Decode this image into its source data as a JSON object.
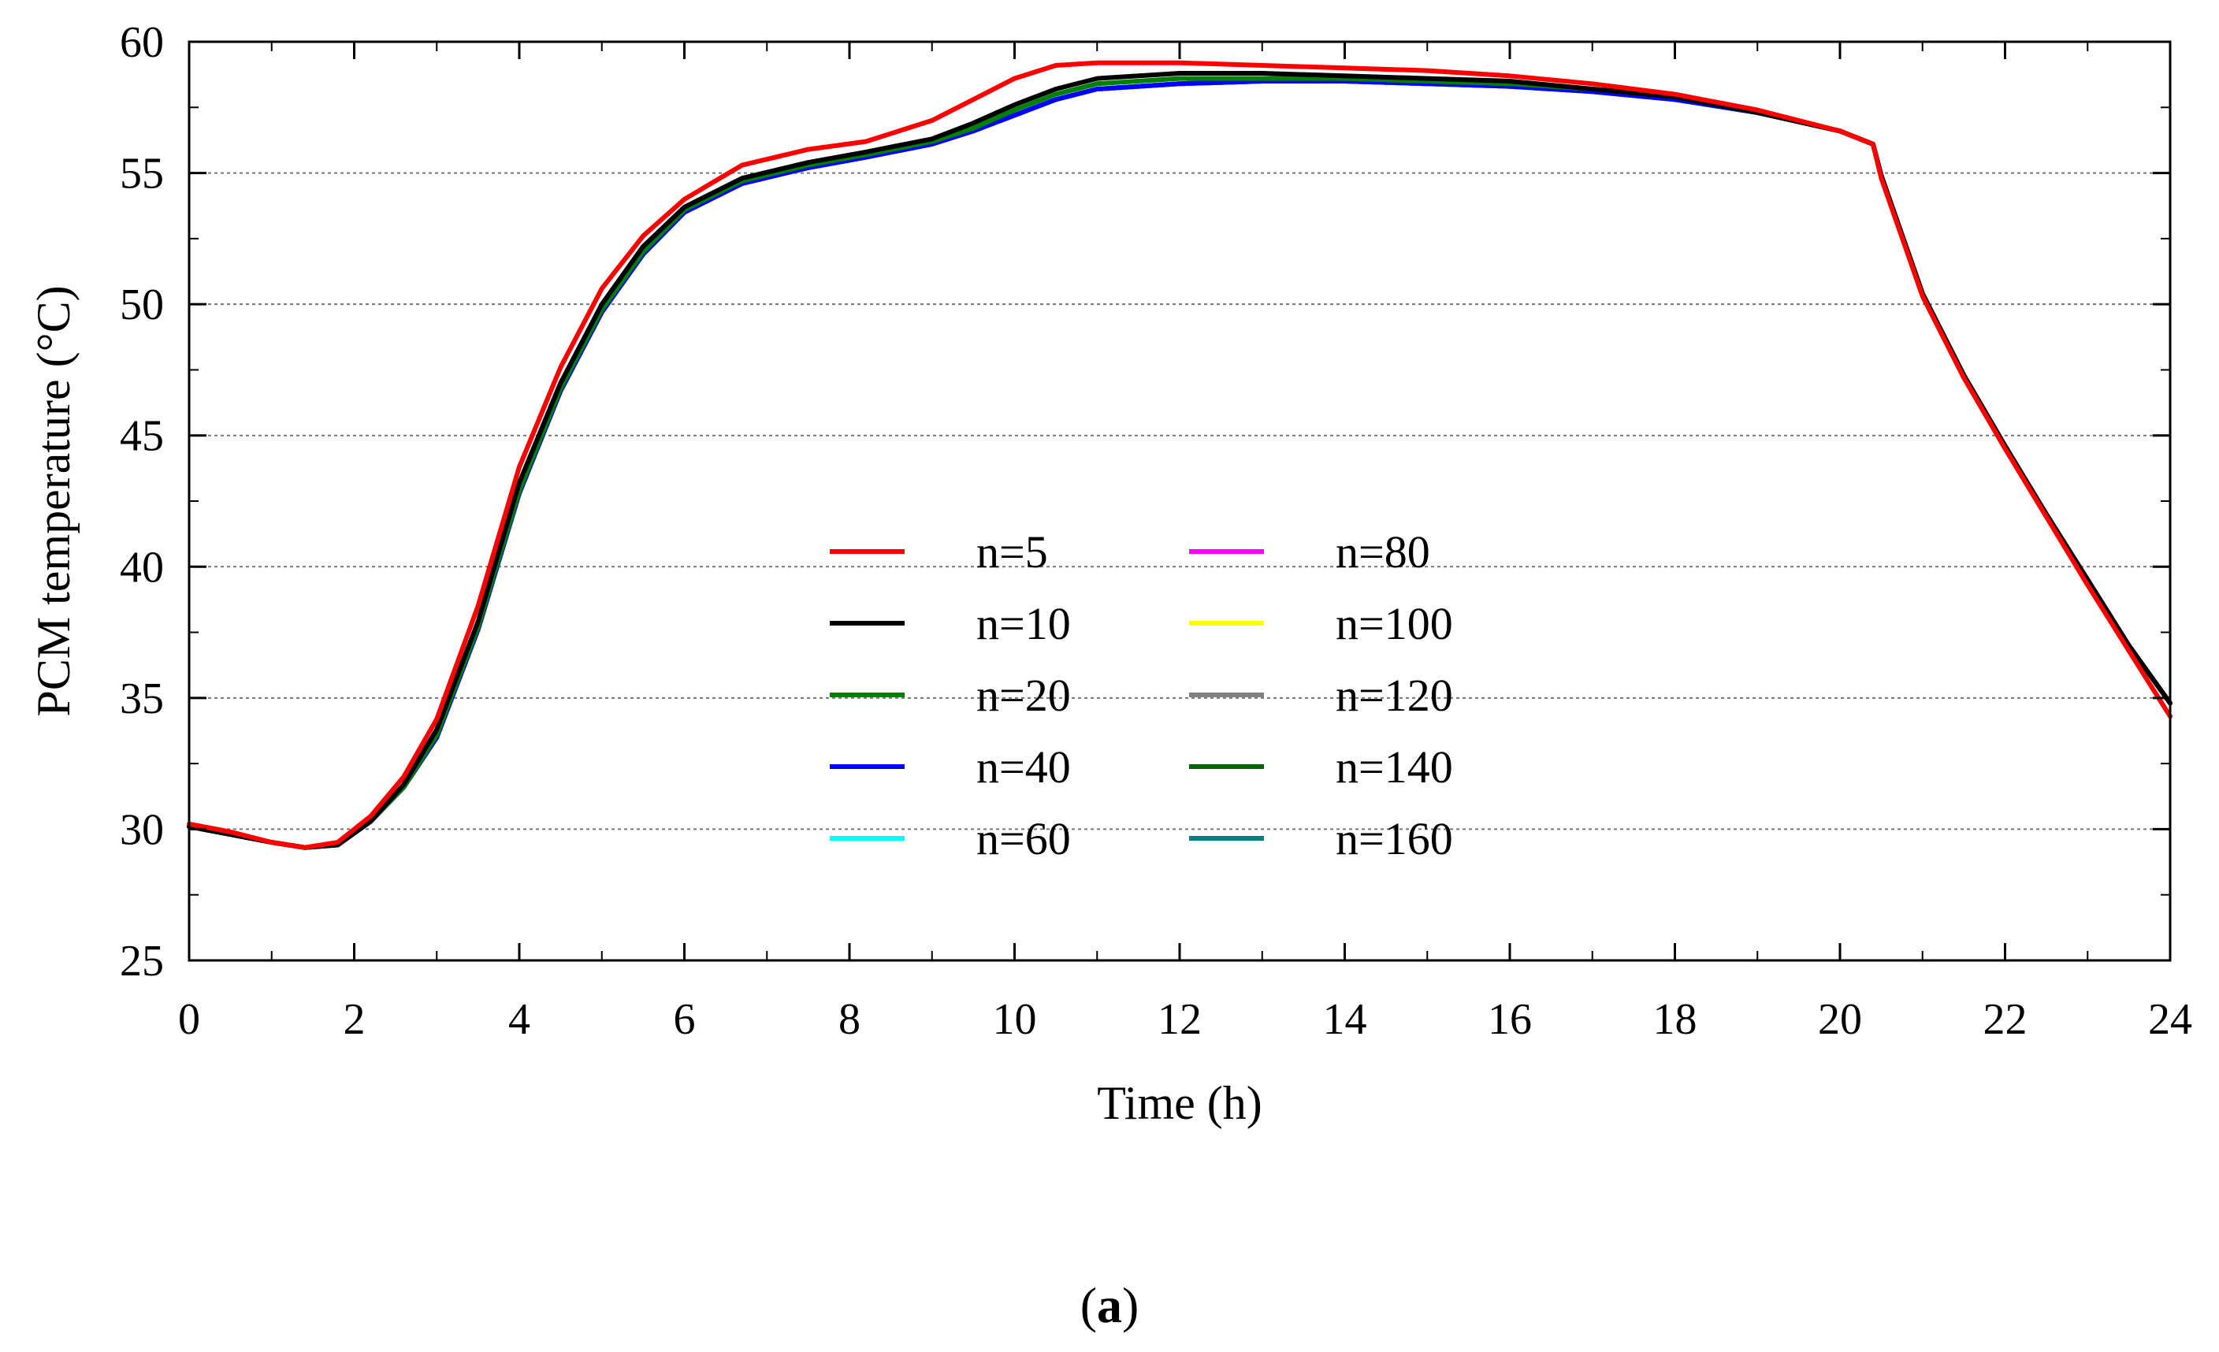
{
  "chart_data": {
    "type": "line",
    "title": "",
    "xlabel": "Time (h)",
    "ylabel": "PCM temperature (°C)",
    "xlim": [
      0,
      24
    ],
    "ylim": [
      25,
      60
    ],
    "xticks": [
      0,
      2,
      4,
      6,
      8,
      10,
      12,
      14,
      16,
      18,
      20,
      22,
      24
    ],
    "yticks": [
      25,
      30,
      35,
      40,
      45,
      50,
      55,
      60
    ],
    "grid": "horizontal dotted",
    "legend_position": "center",
    "series": [
      {
        "name": "n=5",
        "color": "#ff0000",
        "x": [
          0,
          0.5,
          1,
          1.4,
          1.8,
          2.2,
          2.6,
          3,
          3.5,
          4,
          4.5,
          5,
          5.5,
          6,
          6.7,
          7.5,
          8.2,
          9,
          9.5,
          10,
          10.5,
          11,
          12,
          13,
          14,
          15,
          16,
          17,
          18,
          19,
          20,
          20.4,
          20.5,
          21,
          21.5,
          22,
          22.5,
          23,
          23.5,
          24
        ],
        "y": [
          30.2,
          29.9,
          29.5,
          29.3,
          29.5,
          30.5,
          32.0,
          34.2,
          38.5,
          43.8,
          47.6,
          50.6,
          52.6,
          54.0,
          55.3,
          55.9,
          56.2,
          57.0,
          57.8,
          58.6,
          59.1,
          59.2,
          59.2,
          59.1,
          59.0,
          58.9,
          58.7,
          58.4,
          58.0,
          57.4,
          56.6,
          56.1,
          54.8,
          50.3,
          47.2,
          44.5,
          41.9,
          39.3,
          36.8,
          34.3
        ]
      },
      {
        "name": "n=10",
        "color": "#000000",
        "x": [
          0,
          0.5,
          1,
          1.4,
          1.8,
          2.2,
          2.6,
          3,
          3.5,
          4,
          4.5,
          5,
          5.5,
          6,
          6.7,
          7.5,
          8.2,
          9,
          9.5,
          10,
          10.5,
          11,
          12,
          13,
          14,
          15,
          16,
          17,
          18,
          19,
          20,
          20.4,
          20.5,
          21,
          21.5,
          22,
          22.5,
          23,
          23.5,
          24
        ],
        "y": [
          30.1,
          29.8,
          29.5,
          29.3,
          29.4,
          30.3,
          31.7,
          33.8,
          37.9,
          43.2,
          47.0,
          50.0,
          52.2,
          53.7,
          54.8,
          55.4,
          55.8,
          56.3,
          56.9,
          57.6,
          58.2,
          58.6,
          58.8,
          58.8,
          58.7,
          58.6,
          58.5,
          58.2,
          57.9,
          57.3,
          56.6,
          56.1,
          54.9,
          50.4,
          47.3,
          44.6,
          42.0,
          39.5,
          37.0,
          34.8
        ]
      },
      {
        "name": "n=20",
        "color": "#008000",
        "x": [
          0,
          0.5,
          1,
          1.4,
          1.8,
          2.2,
          2.6,
          3,
          3.5,
          4,
          4.5,
          5,
          5.5,
          6,
          6.7,
          7.5,
          8.2,
          9,
          9.5,
          10,
          10.5,
          11,
          12,
          13,
          14,
          15,
          16,
          17,
          18,
          19,
          20,
          20.4,
          20.5,
          21,
          21.5,
          22,
          22.5,
          23,
          23.5,
          24
        ],
        "y": [
          30.1,
          29.8,
          29.5,
          29.3,
          29.4,
          30.3,
          31.6,
          33.6,
          37.7,
          42.9,
          46.8,
          49.8,
          52.0,
          53.6,
          54.7,
          55.3,
          55.7,
          56.2,
          56.7,
          57.4,
          58.0,
          58.4,
          58.6,
          58.6,
          58.6,
          58.5,
          58.4,
          58.2,
          57.9,
          57.3,
          56.6,
          56.1,
          54.9,
          50.4,
          47.3,
          44.6,
          42.0,
          39.5,
          37.0,
          34.8
        ]
      },
      {
        "name": "n=40",
        "color": "#0000ff",
        "x": [
          0,
          0.5,
          1,
          1.4,
          1.8,
          2.2,
          2.6,
          3,
          3.5,
          4,
          4.5,
          5,
          5.5,
          6,
          6.7,
          7.5,
          8.2,
          9,
          9.5,
          10,
          10.5,
          11,
          12,
          13,
          14,
          15,
          16,
          17,
          18,
          19,
          20,
          20.4,
          20.5,
          21,
          21.5,
          22,
          22.5,
          23,
          23.5,
          24
        ],
        "y": [
          30.1,
          29.8,
          29.5,
          29.3,
          29.4,
          30.3,
          31.6,
          33.5,
          37.6,
          42.8,
          46.7,
          49.7,
          51.9,
          53.5,
          54.6,
          55.2,
          55.6,
          56.1,
          56.6,
          57.2,
          57.8,
          58.2,
          58.4,
          58.5,
          58.5,
          58.4,
          58.3,
          58.1,
          57.8,
          57.3,
          56.6,
          56.1,
          54.9,
          50.4,
          47.3,
          44.6,
          42.0,
          39.5,
          37.0,
          34.8
        ]
      },
      {
        "name": "n=60",
        "color": "#00ffff",
        "x": [
          0,
          0.5,
          1,
          1.4,
          1.8,
          2.2,
          2.6,
          3,
          3.5,
          4,
          4.5,
          5,
          5.5,
          6,
          6.7,
          7.5,
          8.2,
          9,
          9.5,
          10,
          10.5,
          11,
          12,
          13,
          14,
          15,
          16,
          17,
          18,
          19,
          20,
          20.4,
          20.5,
          21,
          21.5,
          22,
          22.5,
          23,
          23.5,
          24
        ],
        "y": [
          30.1,
          29.8,
          29.5,
          29.3,
          29.4,
          30.3,
          31.6,
          33.5,
          37.6,
          42.8,
          46.7,
          49.7,
          51.9,
          53.5,
          54.6,
          55.2,
          55.6,
          56.1,
          56.6,
          57.2,
          57.8,
          58.2,
          58.4,
          58.5,
          58.5,
          58.4,
          58.3,
          58.1,
          57.8,
          57.3,
          56.6,
          56.1,
          54.9,
          50.4,
          47.3,
          44.6,
          42.0,
          39.5,
          37.0,
          34.8
        ]
      },
      {
        "name": "n=80",
        "color": "#ff00ff",
        "x": [
          0,
          0.5,
          1,
          1.4,
          1.8,
          2.2,
          2.6,
          3,
          3.5,
          4,
          4.5,
          5,
          5.5,
          6,
          6.7,
          7.5,
          8.2,
          9,
          9.5,
          10,
          10.5,
          11,
          12,
          13,
          14,
          15,
          16,
          17,
          18,
          19,
          20,
          20.4,
          20.5,
          21,
          21.5,
          22,
          22.5,
          23,
          23.5,
          24
        ],
        "y": [
          30.1,
          29.8,
          29.5,
          29.3,
          29.4,
          30.3,
          31.6,
          33.5,
          37.6,
          42.8,
          46.7,
          49.7,
          51.9,
          53.5,
          54.6,
          55.2,
          55.6,
          56.1,
          56.6,
          57.2,
          57.8,
          58.2,
          58.4,
          58.5,
          58.5,
          58.4,
          58.3,
          58.1,
          57.8,
          57.3,
          56.6,
          56.1,
          54.9,
          50.4,
          47.3,
          44.6,
          42.0,
          39.5,
          37.0,
          34.8
        ]
      },
      {
        "name": "n=100",
        "color": "#ffff00",
        "x": [
          0,
          0.5,
          1,
          1.4,
          1.8,
          2.2,
          2.6,
          3,
          3.5,
          4,
          4.5,
          5,
          5.5,
          6,
          6.7,
          7.5,
          8.2,
          9,
          9.5,
          10,
          10.5,
          11,
          12,
          13,
          14,
          15,
          16,
          17,
          18,
          19,
          20,
          20.4,
          20.5,
          21,
          21.5,
          22,
          22.5,
          23,
          23.5,
          24
        ],
        "y": [
          30.1,
          29.8,
          29.5,
          29.3,
          29.4,
          30.3,
          31.6,
          33.5,
          37.6,
          42.8,
          46.7,
          49.7,
          51.9,
          53.5,
          54.6,
          55.2,
          55.6,
          56.1,
          56.6,
          57.2,
          57.8,
          58.2,
          58.4,
          58.5,
          58.5,
          58.4,
          58.3,
          58.1,
          57.8,
          57.3,
          56.6,
          56.1,
          54.9,
          50.4,
          47.3,
          44.6,
          42.0,
          39.5,
          37.0,
          34.8
        ]
      },
      {
        "name": "n=120",
        "color": "#808080",
        "x": [
          0,
          0.5,
          1,
          1.4,
          1.8,
          2.2,
          2.6,
          3,
          3.5,
          4,
          4.5,
          5,
          5.5,
          6,
          6.7,
          7.5,
          8.2,
          9,
          9.5,
          10,
          10.5,
          11,
          12,
          13,
          14,
          15,
          16,
          17,
          18,
          19,
          20,
          20.4,
          20.5,
          21,
          21.5,
          22,
          22.5,
          23,
          23.5,
          24
        ],
        "y": [
          30.1,
          29.8,
          29.5,
          29.3,
          29.4,
          30.3,
          31.6,
          33.5,
          37.6,
          42.8,
          46.7,
          49.7,
          51.9,
          53.5,
          54.6,
          55.2,
          55.6,
          56.1,
          56.6,
          57.2,
          57.8,
          58.2,
          58.4,
          58.5,
          58.5,
          58.4,
          58.3,
          58.1,
          57.8,
          57.3,
          56.6,
          56.1,
          54.9,
          50.4,
          47.3,
          44.6,
          42.0,
          39.5,
          37.0,
          34.8
        ]
      },
      {
        "name": "n=140",
        "color": "#006400",
        "x": [
          0,
          0.5,
          1,
          1.4,
          1.8,
          2.2,
          2.6,
          3,
          3.5,
          4,
          4.5,
          5,
          5.5,
          6,
          6.7,
          7.5,
          8.2,
          9,
          9.5,
          10,
          10.5,
          11,
          12,
          13,
          14,
          15,
          16,
          17,
          18,
          19,
          20,
          20.4,
          20.5,
          21,
          21.5,
          22,
          22.5,
          23,
          23.5,
          24
        ],
        "y": [
          30.1,
          29.8,
          29.5,
          29.3,
          29.4,
          30.3,
          31.6,
          33.5,
          37.6,
          42.8,
          46.7,
          49.7,
          51.9,
          53.5,
          54.6,
          55.2,
          55.6,
          56.1,
          56.6,
          57.2,
          57.8,
          58.2,
          58.4,
          58.5,
          58.5,
          58.4,
          58.3,
          58.1,
          57.8,
          57.3,
          56.6,
          56.1,
          54.9,
          50.4,
          47.3,
          44.6,
          42.0,
          39.5,
          37.0,
          34.8
        ]
      },
      {
        "name": "n=160",
        "color": "#008080",
        "x": [
          0,
          0.5,
          1,
          1.4,
          1.8,
          2.2,
          2.6,
          3,
          3.5,
          4,
          4.5,
          5,
          5.5,
          6,
          6.7,
          7.5,
          8.2,
          9,
          9.5,
          10,
          10.5,
          11,
          12,
          13,
          14,
          15,
          16,
          17,
          18,
          19,
          20,
          20.4,
          20.5,
          21,
          21.5,
          22,
          22.5,
          23,
          23.5,
          24
        ],
        "y": [
          30.1,
          29.8,
          29.5,
          29.3,
          29.4,
          30.3,
          31.6,
          33.5,
          37.6,
          42.8,
          46.7,
          49.7,
          51.9,
          53.5,
          54.6,
          55.2,
          55.6,
          56.1,
          56.6,
          57.2,
          57.8,
          58.2,
          58.4,
          58.5,
          58.5,
          58.4,
          58.3,
          58.1,
          57.8,
          57.3,
          56.6,
          56.1,
          54.9,
          50.4,
          47.3,
          44.6,
          42.0,
          39.5,
          37.0,
          34.8
        ]
      }
    ]
  },
  "caption": {
    "open": "(",
    "letter": "a",
    "close": ")"
  }
}
